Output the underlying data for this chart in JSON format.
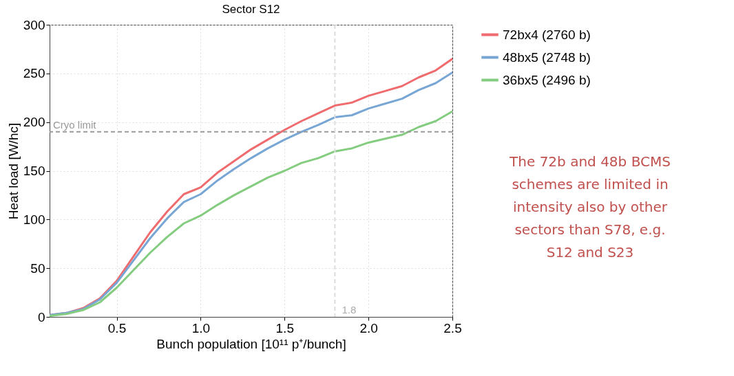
{
  "chart_data": {
    "type": "line",
    "title": "Sector S12",
    "xlabel": "Bunch population [10¹¹ p⁺/bunch]",
    "ylabel": "Heat load [W/hc]",
    "x": [
      0.1,
      0.2,
      0.3,
      0.4,
      0.5,
      0.6,
      0.7,
      0.8,
      0.9,
      1.0,
      1.1,
      1.2,
      1.3,
      1.4,
      1.5,
      1.6,
      1.7,
      1.8,
      1.9,
      2.0,
      2.1,
      2.2,
      2.3,
      2.4,
      2.5
    ],
    "series": [
      {
        "name": "72bx4 (2760 b)",
        "color": "#ef6b6e",
        "values": [
          2,
          4,
          9,
          19,
          37,
          62,
          87,
          108,
          126,
          133,
          148,
          160,
          172,
          182,
          192,
          201,
          209,
          217,
          220,
          227,
          232,
          237,
          246,
          253,
          265
        ]
      },
      {
        "name": "48bx5 (2748 b)",
        "color": "#78a6d4",
        "values": [
          2,
          4,
          8,
          18,
          35,
          58,
          81,
          101,
          118,
          126,
          140,
          152,
          163,
          173,
          182,
          190,
          197,
          205,
          207,
          214,
          219,
          224,
          233,
          240,
          251
        ]
      },
      {
        "name": "36bx5 (2496 b)",
        "color": "#84cc7f",
        "values": [
          1,
          3,
          7,
          15,
          30,
          48,
          66,
          82,
          96,
          104,
          115,
          125,
          134,
          143,
          150,
          158,
          163,
          170,
          173,
          179,
          183,
          187,
          195,
          201,
          211
        ]
      }
    ],
    "xlim": [
      0.1,
      2.5
    ],
    "xticks": [
      0.5,
      {
        "value": 1.0,
        "label": "1.0"
      },
      1.5,
      {
        "value": 2.0,
        "label": "2.0"
      },
      2.5
    ],
    "ylim": [
      0,
      300
    ],
    "yticks": [
      0,
      50,
      100,
      150,
      200,
      250,
      300
    ],
    "ref_lines": [
      {
        "axis": "y",
        "value": 190,
        "label": "Cryo limit",
        "color": "#999999",
        "line_style": "dashed"
      },
      {
        "axis": "x",
        "value": 1.8,
        "label": "1.8",
        "color": "#dddddd",
        "line_style": "dashed"
      }
    ],
    "annotations": [
      "The  72b and 48b BCMS schemes are limited in intensity also by other sectors than S78, e.g. S12 and S23"
    ],
    "grid": true,
    "legend": "right",
    "line_style": "solid",
    "marker": "none"
  }
}
